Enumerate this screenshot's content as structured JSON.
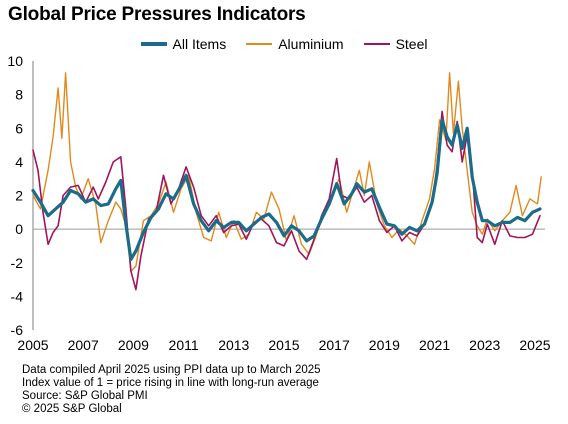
{
  "chart_data": {
    "type": "line",
    "title": "Global Price Pressures Indicators",
    "xlabel": "",
    "ylabel": "",
    "ylim": [
      -6,
      10
    ],
    "yticks": [
      -6,
      -4,
      -2,
      0,
      2,
      4,
      6,
      8,
      10
    ],
    "xlim": [
      2005,
      2025.4
    ],
    "xticks": [
      "2005",
      "2007",
      "2009",
      "2011",
      "2013",
      "2015",
      "2017",
      "2019",
      "2021",
      "2023",
      "2025"
    ],
    "grid": false,
    "legend": "top-center",
    "series": [
      {
        "name": "All Items",
        "color": "#1b6b8a",
        "width": 3.2,
        "points": [
          [
            2005,
            2.3
          ],
          [
            2005.3,
            1.6
          ],
          [
            2005.6,
            0.8
          ],
          [
            2005.9,
            1.2
          ],
          [
            2006.2,
            1.6
          ],
          [
            2006.5,
            2.3
          ],
          [
            2006.8,
            2.1
          ],
          [
            2007.1,
            1.6
          ],
          [
            2007.4,
            1.8
          ],
          [
            2007.7,
            1.4
          ],
          [
            2008,
            1.5
          ],
          [
            2008.3,
            2.4
          ],
          [
            2008.5,
            2.9
          ],
          [
            2008.7,
            0.3
          ],
          [
            2008.9,
            -1.8
          ],
          [
            2009.1,
            -1.3
          ],
          [
            2009.4,
            -0.2
          ],
          [
            2009.7,
            0.7
          ],
          [
            2010,
            1.2
          ],
          [
            2010.3,
            2.1
          ],
          [
            2010.6,
            1.8
          ],
          [
            2010.9,
            2.6
          ],
          [
            2011.1,
            3.2
          ],
          [
            2011.4,
            1.5
          ],
          [
            2011.7,
            0.5
          ],
          [
            2012,
            -0.1
          ],
          [
            2012.3,
            0.5
          ],
          [
            2012.6,
            0.1
          ],
          [
            2012.9,
            0.4
          ],
          [
            2013.2,
            0.4
          ],
          [
            2013.5,
            -0.1
          ],
          [
            2013.8,
            0.3
          ],
          [
            2014.1,
            0.7
          ],
          [
            2014.4,
            0.9
          ],
          [
            2014.7,
            0.4
          ],
          [
            2015,
            -0.4
          ],
          [
            2015.3,
            0.2
          ],
          [
            2015.6,
            -0.1
          ],
          [
            2015.9,
            -0.7
          ],
          [
            2016.2,
            -0.4
          ],
          [
            2016.5,
            0.6
          ],
          [
            2016.8,
            1.5
          ],
          [
            2017.1,
            2.7
          ],
          [
            2017.4,
            1.5
          ],
          [
            2017.7,
            2.1
          ],
          [
            2017.9,
            2.7
          ],
          [
            2018.2,
            2.2
          ],
          [
            2018.5,
            2.4
          ],
          [
            2018.8,
            1.3
          ],
          [
            2019.1,
            0.3
          ],
          [
            2019.4,
            0.2
          ],
          [
            2019.7,
            -0.3
          ],
          [
            2020,
            0.1
          ],
          [
            2020.3,
            -0.1
          ],
          [
            2020.6,
            0.3
          ],
          [
            2020.9,
            1.6
          ],
          [
            2021.1,
            3.3
          ],
          [
            2021.3,
            6.5
          ],
          [
            2021.5,
            5.5
          ],
          [
            2021.7,
            5.0
          ],
          [
            2021.9,
            6.2
          ],
          [
            2022.1,
            4.8
          ],
          [
            2022.3,
            6.0
          ],
          [
            2022.5,
            3.1
          ],
          [
            2022.7,
            1.6
          ],
          [
            2022.9,
            0.5
          ],
          [
            2023.1,
            0.5
          ],
          [
            2023.4,
            0.2
          ],
          [
            2023.7,
            0.4
          ],
          [
            2024,
            0.4
          ],
          [
            2024.3,
            0.7
          ],
          [
            2024.6,
            0.5
          ],
          [
            2024.9,
            1.0
          ],
          [
            2025.2,
            1.2
          ]
        ]
      },
      {
        "name": "Aluminium",
        "color": "#e08a1e",
        "width": 1.4,
        "points": [
          [
            2005,
            2.0
          ],
          [
            2005.3,
            1.2
          ],
          [
            2005.6,
            3.5
          ],
          [
            2005.8,
            5.5
          ],
          [
            2006,
            8.4
          ],
          [
            2006.15,
            5.4
          ],
          [
            2006.3,
            9.3
          ],
          [
            2006.5,
            4.0
          ],
          [
            2006.7,
            2.5
          ],
          [
            2006.9,
            1.8
          ],
          [
            2007.2,
            3.0
          ],
          [
            2007.5,
            1.5
          ],
          [
            2007.7,
            -0.8
          ],
          [
            2008,
            0.5
          ],
          [
            2008.3,
            1.6
          ],
          [
            2008.5,
            1.2
          ],
          [
            2008.7,
            0.2
          ],
          [
            2008.9,
            -2.5
          ],
          [
            2009.1,
            -2.2
          ],
          [
            2009.4,
            0.5
          ],
          [
            2009.7,
            0.8
          ],
          [
            2010,
            1.5
          ],
          [
            2010.3,
            2.8
          ],
          [
            2010.6,
            1.0
          ],
          [
            2010.9,
            2.4
          ],
          [
            2011.2,
            3.2
          ],
          [
            2011.5,
            1.0
          ],
          [
            2011.8,
            -0.5
          ],
          [
            2012.1,
            -0.7
          ],
          [
            2012.4,
            1.0
          ],
          [
            2012.7,
            -0.5
          ],
          [
            2013,
            0.5
          ],
          [
            2013.3,
            -0.6
          ],
          [
            2013.6,
            -0.3
          ],
          [
            2013.9,
            1.0
          ],
          [
            2014.2,
            0.6
          ],
          [
            2014.5,
            2.2
          ],
          [
            2014.8,
            1.2
          ],
          [
            2015.1,
            -0.7
          ],
          [
            2015.4,
            0.8
          ],
          [
            2015.7,
            -0.9
          ],
          [
            2016,
            -1.5
          ],
          [
            2016.3,
            -0.3
          ],
          [
            2016.6,
            1.0
          ],
          [
            2016.9,
            2.0
          ],
          [
            2017.2,
            3.0
          ],
          [
            2017.5,
            1.0
          ],
          [
            2017.8,
            2.5
          ],
          [
            2018,
            3.5
          ],
          [
            2018.2,
            2.0
          ],
          [
            2018.4,
            4.0
          ],
          [
            2018.7,
            1.5
          ],
          [
            2019,
            0.2
          ],
          [
            2019.3,
            -0.5
          ],
          [
            2019.6,
            0.0
          ],
          [
            2019.9,
            -0.4
          ],
          [
            2020.2,
            -0.9
          ],
          [
            2020.5,
            0.5
          ],
          [
            2020.8,
            1.8
          ],
          [
            2021,
            3.6
          ],
          [
            2021.2,
            6.5
          ],
          [
            2021.45,
            5.3
          ],
          [
            2021.6,
            9.3
          ],
          [
            2021.75,
            5.7
          ],
          [
            2021.95,
            8.8
          ],
          [
            2022.1,
            6.0
          ],
          [
            2022.3,
            3.5
          ],
          [
            2022.5,
            1.0
          ],
          [
            2022.7,
            0.2
          ],
          [
            2022.9,
            -0.3
          ],
          [
            2023.1,
            0.6
          ],
          [
            2023.4,
            -0.1
          ],
          [
            2023.7,
            0.5
          ],
          [
            2024,
            1.0
          ],
          [
            2024.25,
            2.6
          ],
          [
            2024.5,
            0.8
          ],
          [
            2024.8,
            1.8
          ],
          [
            2025.1,
            1.5
          ],
          [
            2025.25,
            3.1
          ]
        ]
      },
      {
        "name": "Steel",
        "color": "#a0155a",
        "width": 1.6,
        "points": [
          [
            2005,
            4.7
          ],
          [
            2005.2,
            3.5
          ],
          [
            2005.4,
            1.0
          ],
          [
            2005.6,
            -0.9
          ],
          [
            2005.8,
            -0.2
          ],
          [
            2006,
            0.2
          ],
          [
            2006.2,
            2.0
          ],
          [
            2006.5,
            2.5
          ],
          [
            2006.8,
            2.6
          ],
          [
            2007.1,
            1.6
          ],
          [
            2007.4,
            2.5
          ],
          [
            2007.6,
            1.8
          ],
          [
            2007.9,
            2.8
          ],
          [
            2008.2,
            4.0
          ],
          [
            2008.5,
            4.3
          ],
          [
            2008.7,
            1.2
          ],
          [
            2008.9,
            -2.5
          ],
          [
            2009.1,
            -3.6
          ],
          [
            2009.3,
            -1.6
          ],
          [
            2009.6,
            0.6
          ],
          [
            2009.9,
            1.0
          ],
          [
            2010.2,
            3.2
          ],
          [
            2010.5,
            1.5
          ],
          [
            2010.8,
            2.4
          ],
          [
            2011.1,
            3.7
          ],
          [
            2011.4,
            2.5
          ],
          [
            2011.7,
            0.8
          ],
          [
            2012,
            0.2
          ],
          [
            2012.3,
            0.8
          ],
          [
            2012.6,
            -0.2
          ],
          [
            2012.9,
            0.2
          ],
          [
            2013.2,
            0.3
          ],
          [
            2013.5,
            -0.6
          ],
          [
            2013.8,
            0.4
          ],
          [
            2014.1,
            0.6
          ],
          [
            2014.4,
            0.2
          ],
          [
            2014.7,
            -0.8
          ],
          [
            2015,
            -1.0
          ],
          [
            2015.3,
            -0.1
          ],
          [
            2015.6,
            -1.3
          ],
          [
            2015.9,
            -1.8
          ],
          [
            2016.2,
            -0.6
          ],
          [
            2016.5,
            0.8
          ],
          [
            2016.8,
            1.8
          ],
          [
            2017.1,
            4.2
          ],
          [
            2017.3,
            2.0
          ],
          [
            2017.6,
            1.8
          ],
          [
            2017.9,
            2.5
          ],
          [
            2018.2,
            1.6
          ],
          [
            2018.5,
            2.0
          ],
          [
            2018.8,
            0.5
          ],
          [
            2019.1,
            -0.2
          ],
          [
            2019.4,
            0.2
          ],
          [
            2019.7,
            -0.7
          ],
          [
            2020,
            -0.2
          ],
          [
            2020.3,
            -0.4
          ],
          [
            2020.6,
            0.3
          ],
          [
            2020.9,
            1.5
          ],
          [
            2021.1,
            3.8
          ],
          [
            2021.3,
            7.0
          ],
          [
            2021.5,
            5.0
          ],
          [
            2021.7,
            4.6
          ],
          [
            2021.9,
            6.4
          ],
          [
            2022.1,
            4.0
          ],
          [
            2022.3,
            5.6
          ],
          [
            2022.5,
            3.5
          ],
          [
            2022.7,
            -0.5
          ],
          [
            2022.9,
            -0.8
          ],
          [
            2023.1,
            0.3
          ],
          [
            2023.4,
            -0.9
          ],
          [
            2023.7,
            0.5
          ],
          [
            2024,
            -0.4
          ],
          [
            2024.3,
            -0.5
          ],
          [
            2024.6,
            -0.5
          ],
          [
            2024.9,
            -0.3
          ],
          [
            2025.2,
            0.8
          ]
        ]
      }
    ]
  },
  "footer": {
    "line1": "Data compiled April 2025 using PPI data up to March 2025",
    "line2": "Index value of 1 = price rising in line with long-run average",
    "line3": "Source: S&P Global PMI",
    "line4": "© 2025 S&P Global"
  }
}
